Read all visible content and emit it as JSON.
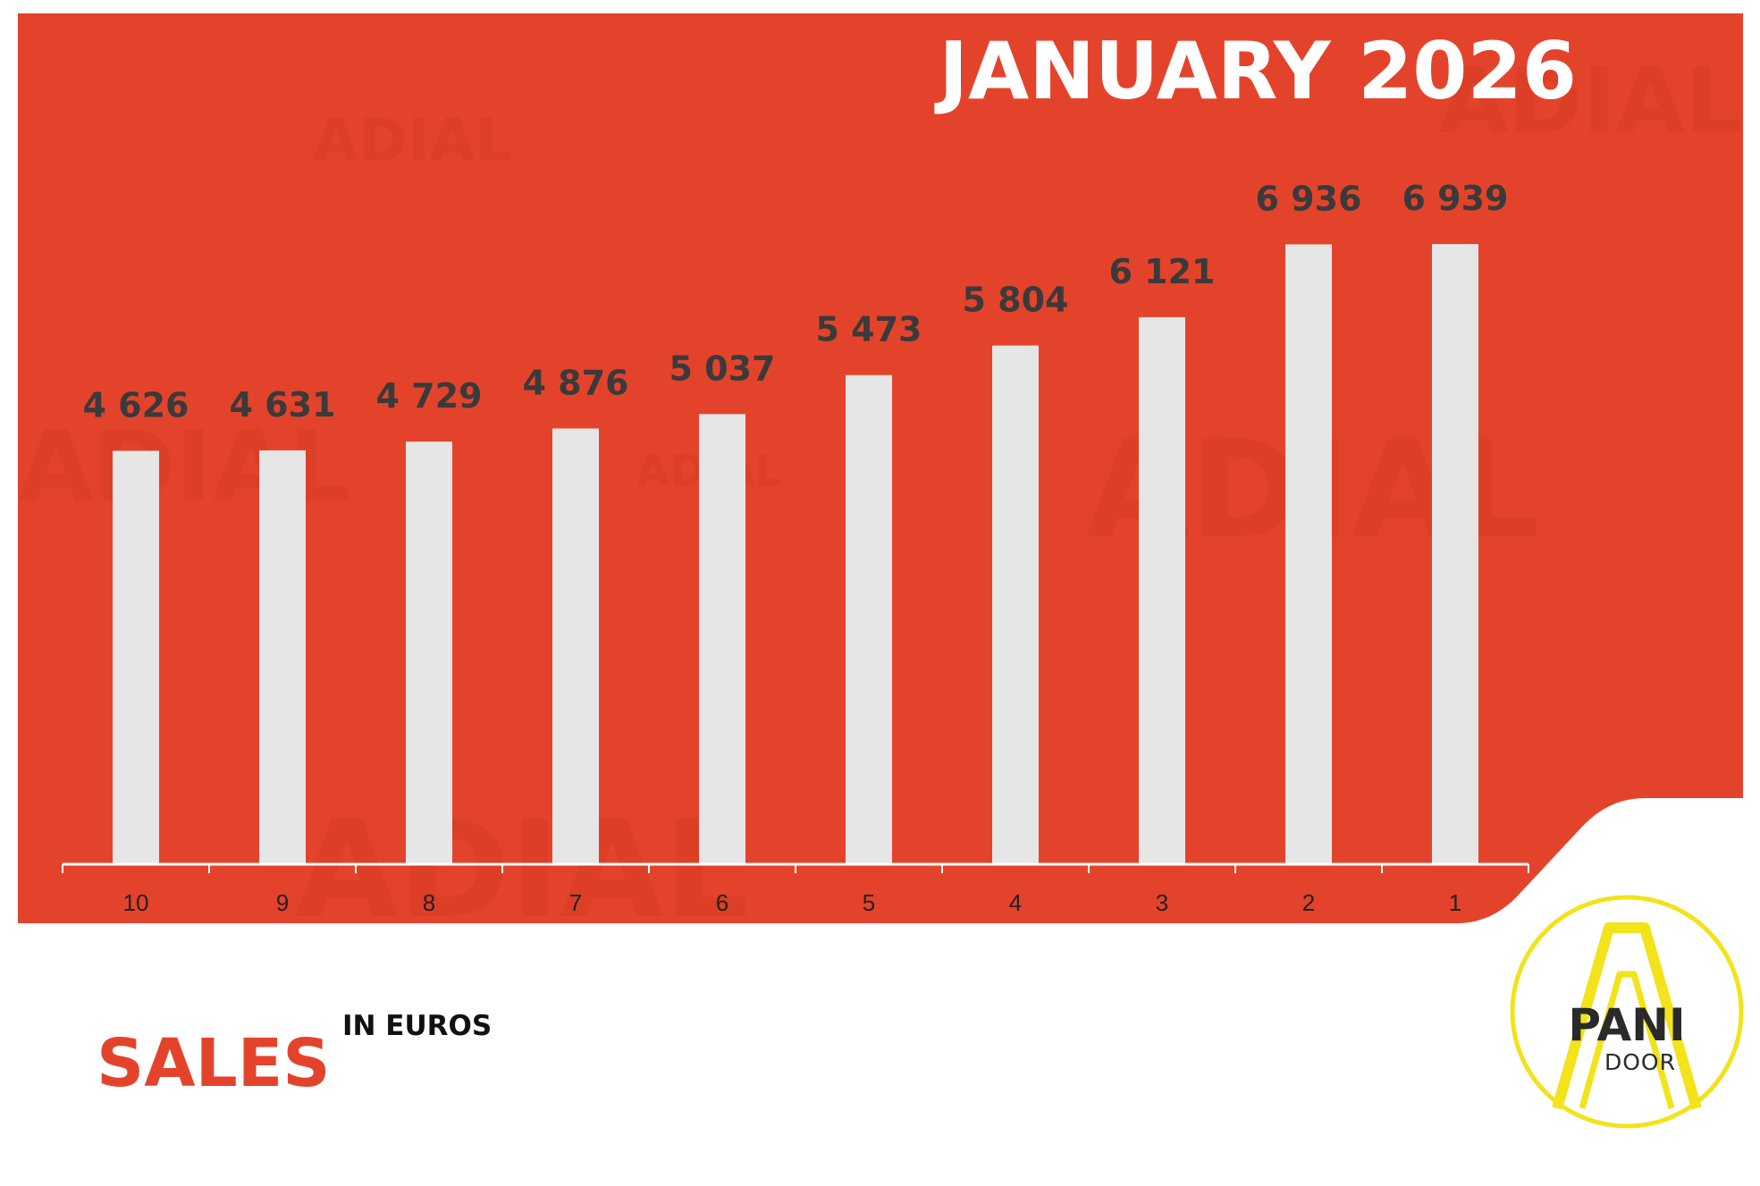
{
  "header": {
    "title": "JANUARY 2026"
  },
  "caption": {
    "main": "SALES",
    "sub": "IN EUROS"
  },
  "logo": {
    "line1": "PANI",
    "line2": "DOOR"
  },
  "watermark": {
    "text": "ADIAL"
  },
  "colors": {
    "background": "#e4432b",
    "bars": "#e6e6e6",
    "accent": "#e4432b",
    "logo_ring": "#f2e31a"
  },
  "chart_data": {
    "type": "bar",
    "categories": [
      "10",
      "9",
      "8",
      "7",
      "6",
      "5",
      "4",
      "3",
      "2",
      "1"
    ],
    "values": [
      4626,
      4631,
      4729,
      4876,
      5037,
      5473,
      5804,
      6121,
      6936,
      6939
    ],
    "value_labels": [
      "4 626",
      "4 631",
      "4 729",
      "4 876",
      "5 037",
      "5 473",
      "5 804",
      "6 121",
      "6 936",
      "6 939"
    ],
    "title": "JANUARY 2026",
    "ylim": [
      0,
      7500
    ],
    "grid": false,
    "legend": "none"
  }
}
